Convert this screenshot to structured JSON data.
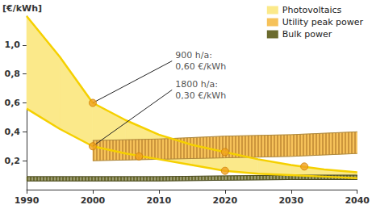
{
  "chart_data": {
    "type": "area",
    "y_label": "[€/kWh]",
    "xlim": [
      1990,
      2040
    ],
    "xticks": [
      1990,
      2000,
      2010,
      2020,
      2030,
      2040
    ],
    "ylim": [
      0,
      1.2
    ],
    "yticks": [
      {
        "value": 0.2,
        "label": "0,2"
      },
      {
        "value": 0.4,
        "label": "0,4"
      },
      {
        "value": 0.6,
        "label": "0,6"
      },
      {
        "value": 0.8,
        "label": "0,8"
      },
      {
        "value": 1.0,
        "label": "1,0"
      }
    ],
    "grid": false,
    "legend": "top-right",
    "series": [
      {
        "name": "Photovoltaics",
        "type": "band",
        "color": "#fbe98a",
        "line_style": "solid",
        "marker": "circle",
        "x": [
          1990,
          1995,
          2000,
          2005,
          2010,
          2015,
          2020,
          2025,
          2030,
          2035,
          2040
        ],
        "upper": [
          1.2,
          0.92,
          0.6,
          0.48,
          0.38,
          0.31,
          0.26,
          0.21,
          0.17,
          0.14,
          0.12
        ],
        "lower": [
          0.56,
          0.42,
          0.3,
          0.25,
          0.21,
          0.17,
          0.13,
          0.11,
          0.1,
          0.09,
          0.08
        ],
        "points": [
          [
            2000,
            0.6
          ],
          [
            2020,
            0.26
          ],
          [
            2032,
            0.16
          ],
          [
            2000,
            0.3
          ],
          [
            2007,
            0.23
          ],
          [
            2020,
            0.13
          ]
        ]
      },
      {
        "name": "Utility peak power",
        "type": "band",
        "color": "#f6c25a",
        "line_style": "hatched",
        "x": [
          2000,
          2010,
          2020,
          2030,
          2040
        ],
        "upper": [
          0.34,
          0.35,
          0.37,
          0.38,
          0.4
        ],
        "lower": [
          0.2,
          0.21,
          0.22,
          0.23,
          0.25
        ]
      },
      {
        "name": "Bulk power",
        "type": "band",
        "color": "#6b6b2e",
        "line_style": "hatched",
        "x": [
          1990,
          2000,
          2010,
          2020,
          2030,
          2040
        ],
        "upper": [
          0.09,
          0.09,
          0.09,
          0.095,
          0.1,
          0.1
        ],
        "lower": [
          0.06,
          0.06,
          0.06,
          0.065,
          0.07,
          0.07
        ]
      }
    ],
    "annotations": [
      {
        "text": "900 h/a:\n0,60 €/kWh",
        "x": 2012,
        "y": 0.89,
        "point": [
          2000,
          0.6
        ]
      },
      {
        "text": "1800 h/a:\n0,30 €/kWh",
        "x": 2012,
        "y": 0.69,
        "point": [
          2000,
          0.3
        ]
      }
    ]
  }
}
